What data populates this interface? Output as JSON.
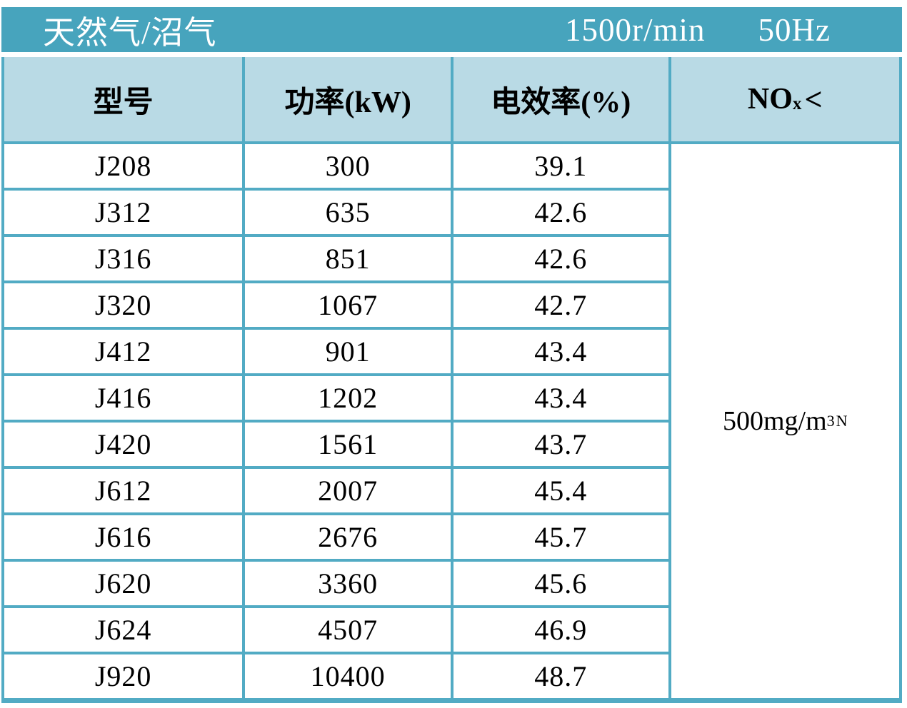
{
  "theme": {
    "title_bar_bg": "#47a4bd",
    "border_color": "#52abc4",
    "header_row_bg": "#b9dae5",
    "title_text_color": "#ffffff",
    "body_text_color": "#000000"
  },
  "title_bar": {
    "fuel_type": "天然气/沼气",
    "speed": "1500r/min",
    "frequency": "50Hz"
  },
  "columns": {
    "model": "型号",
    "power": "功率(kW)",
    "efficiency": "电效率(%)",
    "nox": {
      "base": "NO",
      "sub": "x",
      "operator": "<"
    }
  },
  "rows": [
    {
      "model": "J208",
      "power": "300",
      "efficiency": "39.1"
    },
    {
      "model": "J312",
      "power": "635",
      "efficiency": "42.6"
    },
    {
      "model": "J316",
      "power": "851",
      "efficiency": "42.6"
    },
    {
      "model": "J320",
      "power": "1067",
      "efficiency": "42.7"
    },
    {
      "model": "J412",
      "power": "901",
      "efficiency": "43.4"
    },
    {
      "model": "J416",
      "power": "1202",
      "efficiency": "43.4"
    },
    {
      "model": "J420",
      "power": "1561",
      "efficiency": "43.7"
    },
    {
      "model": "J612",
      "power": "2007",
      "efficiency": "45.4"
    },
    {
      "model": "J616",
      "power": "2676",
      "efficiency": "45.7"
    },
    {
      "model": "J620",
      "power": "3360",
      "efficiency": "45.6"
    },
    {
      "model": "J624",
      "power": "4507",
      "efficiency": "46.9"
    },
    {
      "model": "J920",
      "power": "10400",
      "efficiency": "48.7"
    }
  ],
  "nox_limit": {
    "prefix": "500mg/m",
    "sup": "3",
    "sub": "N"
  }
}
